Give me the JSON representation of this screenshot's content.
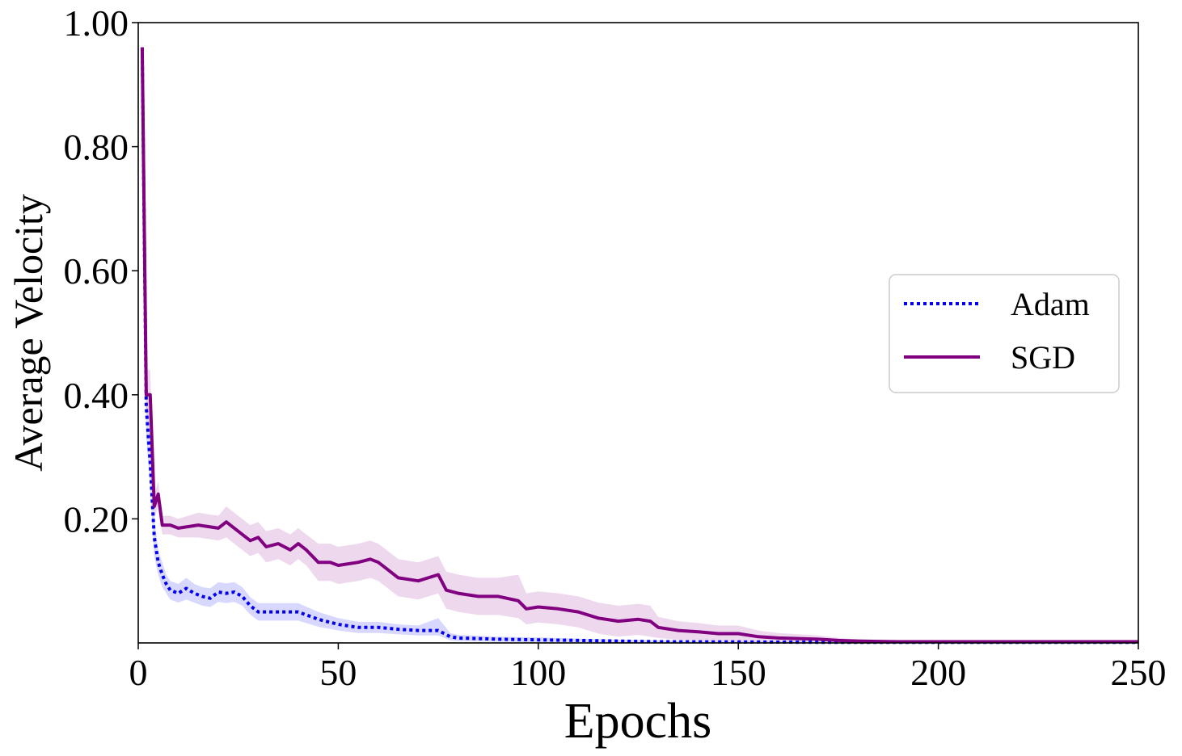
{
  "chart_data": {
    "type": "line",
    "title": "",
    "xlabel": "Epochs",
    "ylabel": "Average Velocity",
    "xlim": [
      0,
      250
    ],
    "ylim": [
      0,
      1.0
    ],
    "x_ticks": [
      0,
      50,
      100,
      150,
      200,
      250
    ],
    "x_tick_labels": [
      "0",
      "50",
      "100",
      "150",
      "200",
      "250"
    ],
    "y_ticks": [
      0.2,
      0.4,
      0.6,
      0.8,
      1.0
    ],
    "y_tick_labels": [
      "0.20",
      "0.40",
      "0.60",
      "0.80",
      "1.00"
    ],
    "grid": false,
    "legend_position": "center-right",
    "series": [
      {
        "name": "Adam",
        "color": "#0000ee",
        "band_color": "#b8b8ff",
        "style": "dotted",
        "points": [
          [
            1,
            0.96
          ],
          [
            2,
            0.38
          ],
          [
            3,
            0.29
          ],
          [
            4,
            0.17
          ],
          [
            5,
            0.13
          ],
          [
            6,
            0.11
          ],
          [
            7,
            0.095
          ],
          [
            8,
            0.085
          ],
          [
            10,
            0.08
          ],
          [
            12,
            0.088
          ],
          [
            14,
            0.08
          ],
          [
            16,
            0.075
          ],
          [
            18,
            0.072
          ],
          [
            20,
            0.082
          ],
          [
            22,
            0.08
          ],
          [
            24,
            0.082
          ],
          [
            26,
            0.075
          ],
          [
            28,
            0.06
          ],
          [
            30,
            0.05
          ],
          [
            35,
            0.05
          ],
          [
            40,
            0.05
          ],
          [
            45,
            0.038
          ],
          [
            50,
            0.03
          ],
          [
            55,
            0.025
          ],
          [
            60,
            0.025
          ],
          [
            65,
            0.022
          ],
          [
            70,
            0.02
          ],
          [
            75,
            0.02
          ],
          [
            78,
            0.01
          ],
          [
            80,
            0.008
          ],
          [
            90,
            0.006
          ],
          [
            100,
            0.005
          ],
          [
            110,
            0.004
          ],
          [
            120,
            0.003
          ],
          [
            130,
            0.002
          ],
          [
            150,
            0.0015
          ],
          [
            170,
            0.001
          ],
          [
            200,
            0.001
          ],
          [
            250,
            0.001
          ]
        ],
        "band": [
          [
            1,
            0.96,
            0.98
          ],
          [
            2,
            0.33,
            0.42
          ],
          [
            3,
            0.25,
            0.33
          ],
          [
            4,
            0.14,
            0.2
          ],
          [
            5,
            0.11,
            0.15
          ],
          [
            6,
            0.09,
            0.13
          ],
          [
            7,
            0.08,
            0.11
          ],
          [
            8,
            0.07,
            0.1
          ],
          [
            10,
            0.065,
            0.095
          ],
          [
            12,
            0.07,
            0.105
          ],
          [
            14,
            0.065,
            0.095
          ],
          [
            16,
            0.06,
            0.09
          ],
          [
            18,
            0.058,
            0.088
          ],
          [
            20,
            0.066,
            0.098
          ],
          [
            22,
            0.064,
            0.096
          ],
          [
            24,
            0.066,
            0.098
          ],
          [
            26,
            0.06,
            0.09
          ],
          [
            28,
            0.046,
            0.074
          ],
          [
            30,
            0.036,
            0.064
          ],
          [
            35,
            0.036,
            0.064
          ],
          [
            40,
            0.036,
            0.064
          ],
          [
            45,
            0.026,
            0.05
          ],
          [
            50,
            0.02,
            0.04
          ],
          [
            55,
            0.016,
            0.034
          ],
          [
            60,
            0.016,
            0.034
          ],
          [
            65,
            0.014,
            0.03
          ],
          [
            70,
            0.012,
            0.028
          ],
          [
            75,
            0.012,
            0.04
          ],
          [
            78,
            0.004,
            0.016
          ],
          [
            80,
            0.003,
            0.013
          ],
          [
            90,
            0.002,
            0.01
          ],
          [
            100,
            0.001,
            0.009
          ],
          [
            110,
            0.001,
            0.007
          ],
          [
            120,
            0.0005,
            0.0055
          ],
          [
            130,
            0,
            0.004
          ],
          [
            150,
            0,
            0.003
          ],
          [
            170,
            0,
            0.002
          ],
          [
            200,
            0,
            0.002
          ],
          [
            250,
            0,
            0.002
          ]
        ]
      },
      {
        "name": "SGD",
        "color": "#800080",
        "band_color": "#e0b8e0",
        "style": "solid",
        "points": [
          [
            1,
            0.96
          ],
          [
            2,
            0.4
          ],
          [
            3,
            0.4
          ],
          [
            4,
            0.22
          ],
          [
            5,
            0.24
          ],
          [
            6,
            0.19
          ],
          [
            8,
            0.19
          ],
          [
            10,
            0.185
          ],
          [
            15,
            0.19
          ],
          [
            20,
            0.185
          ],
          [
            22,
            0.195
          ],
          [
            25,
            0.18
          ],
          [
            28,
            0.165
          ],
          [
            30,
            0.17
          ],
          [
            32,
            0.155
          ],
          [
            35,
            0.16
          ],
          [
            38,
            0.15
          ],
          [
            40,
            0.16
          ],
          [
            42,
            0.15
          ],
          [
            45,
            0.13
          ],
          [
            48,
            0.13
          ],
          [
            50,
            0.125
          ],
          [
            55,
            0.13
          ],
          [
            58,
            0.135
          ],
          [
            60,
            0.13
          ],
          [
            62,
            0.12
          ],
          [
            65,
            0.105
          ],
          [
            70,
            0.1
          ],
          [
            75,
            0.11
          ],
          [
            77,
            0.085
          ],
          [
            80,
            0.08
          ],
          [
            85,
            0.075
          ],
          [
            90,
            0.075
          ],
          [
            95,
            0.068
          ],
          [
            97,
            0.055
          ],
          [
            100,
            0.058
          ],
          [
            105,
            0.055
          ],
          [
            110,
            0.05
          ],
          [
            115,
            0.04
          ],
          [
            120,
            0.035
          ],
          [
            125,
            0.038
          ],
          [
            128,
            0.035
          ],
          [
            130,
            0.025
          ],
          [
            135,
            0.02
          ],
          [
            140,
            0.018
          ],
          [
            145,
            0.015
          ],
          [
            150,
            0.015
          ],
          [
            155,
            0.01
          ],
          [
            160,
            0.008
          ],
          [
            165,
            0.007
          ],
          [
            170,
            0.006
          ],
          [
            175,
            0.004
          ],
          [
            180,
            0.003
          ],
          [
            190,
            0.002
          ],
          [
            200,
            0.002
          ],
          [
            250,
            0.002
          ]
        ],
        "band": [
          [
            1,
            0.96,
            0.99
          ],
          [
            2,
            0.36,
            0.44
          ],
          [
            3,
            0.36,
            0.44
          ],
          [
            4,
            0.2,
            0.24
          ],
          [
            5,
            0.22,
            0.26
          ],
          [
            6,
            0.175,
            0.205
          ],
          [
            8,
            0.175,
            0.205
          ],
          [
            10,
            0.17,
            0.2
          ],
          [
            15,
            0.17,
            0.21
          ],
          [
            20,
            0.165,
            0.205
          ],
          [
            22,
            0.17,
            0.22
          ],
          [
            25,
            0.155,
            0.205
          ],
          [
            28,
            0.14,
            0.19
          ],
          [
            30,
            0.145,
            0.195
          ],
          [
            32,
            0.13,
            0.18
          ],
          [
            35,
            0.135,
            0.185
          ],
          [
            38,
            0.125,
            0.175
          ],
          [
            40,
            0.135,
            0.185
          ],
          [
            42,
            0.125,
            0.175
          ],
          [
            45,
            0.1,
            0.16
          ],
          [
            48,
            0.1,
            0.16
          ],
          [
            50,
            0.095,
            0.155
          ],
          [
            55,
            0.1,
            0.16
          ],
          [
            58,
            0.105,
            0.165
          ],
          [
            60,
            0.1,
            0.16
          ],
          [
            62,
            0.09,
            0.15
          ],
          [
            65,
            0.075,
            0.135
          ],
          [
            70,
            0.07,
            0.13
          ],
          [
            75,
            0.08,
            0.14
          ],
          [
            77,
            0.055,
            0.115
          ],
          [
            80,
            0.05,
            0.11
          ],
          [
            85,
            0.045,
            0.105
          ],
          [
            90,
            0.045,
            0.105
          ],
          [
            95,
            0.04,
            0.11
          ],
          [
            97,
            0.03,
            0.08
          ],
          [
            100,
            0.033,
            0.083
          ],
          [
            105,
            0.03,
            0.08
          ],
          [
            110,
            0.025,
            0.075
          ],
          [
            115,
            0.015,
            0.065
          ],
          [
            120,
            0.01,
            0.06
          ],
          [
            125,
            0.013,
            0.063
          ],
          [
            128,
            0.01,
            0.06
          ],
          [
            130,
            0.008,
            0.042
          ],
          [
            135,
            0.005,
            0.035
          ],
          [
            140,
            0.004,
            0.032
          ],
          [
            145,
            0.002,
            0.028
          ],
          [
            150,
            0.002,
            0.028
          ],
          [
            155,
            0,
            0.02
          ],
          [
            160,
            0,
            0.016
          ],
          [
            165,
            0,
            0.014
          ],
          [
            170,
            0,
            0.012
          ],
          [
            175,
            0,
            0.008
          ],
          [
            180,
            0,
            0.006
          ],
          [
            190,
            0,
            0.004
          ],
          [
            200,
            0,
            0.004
          ],
          [
            250,
            0,
            0.003
          ]
        ]
      }
    ]
  }
}
